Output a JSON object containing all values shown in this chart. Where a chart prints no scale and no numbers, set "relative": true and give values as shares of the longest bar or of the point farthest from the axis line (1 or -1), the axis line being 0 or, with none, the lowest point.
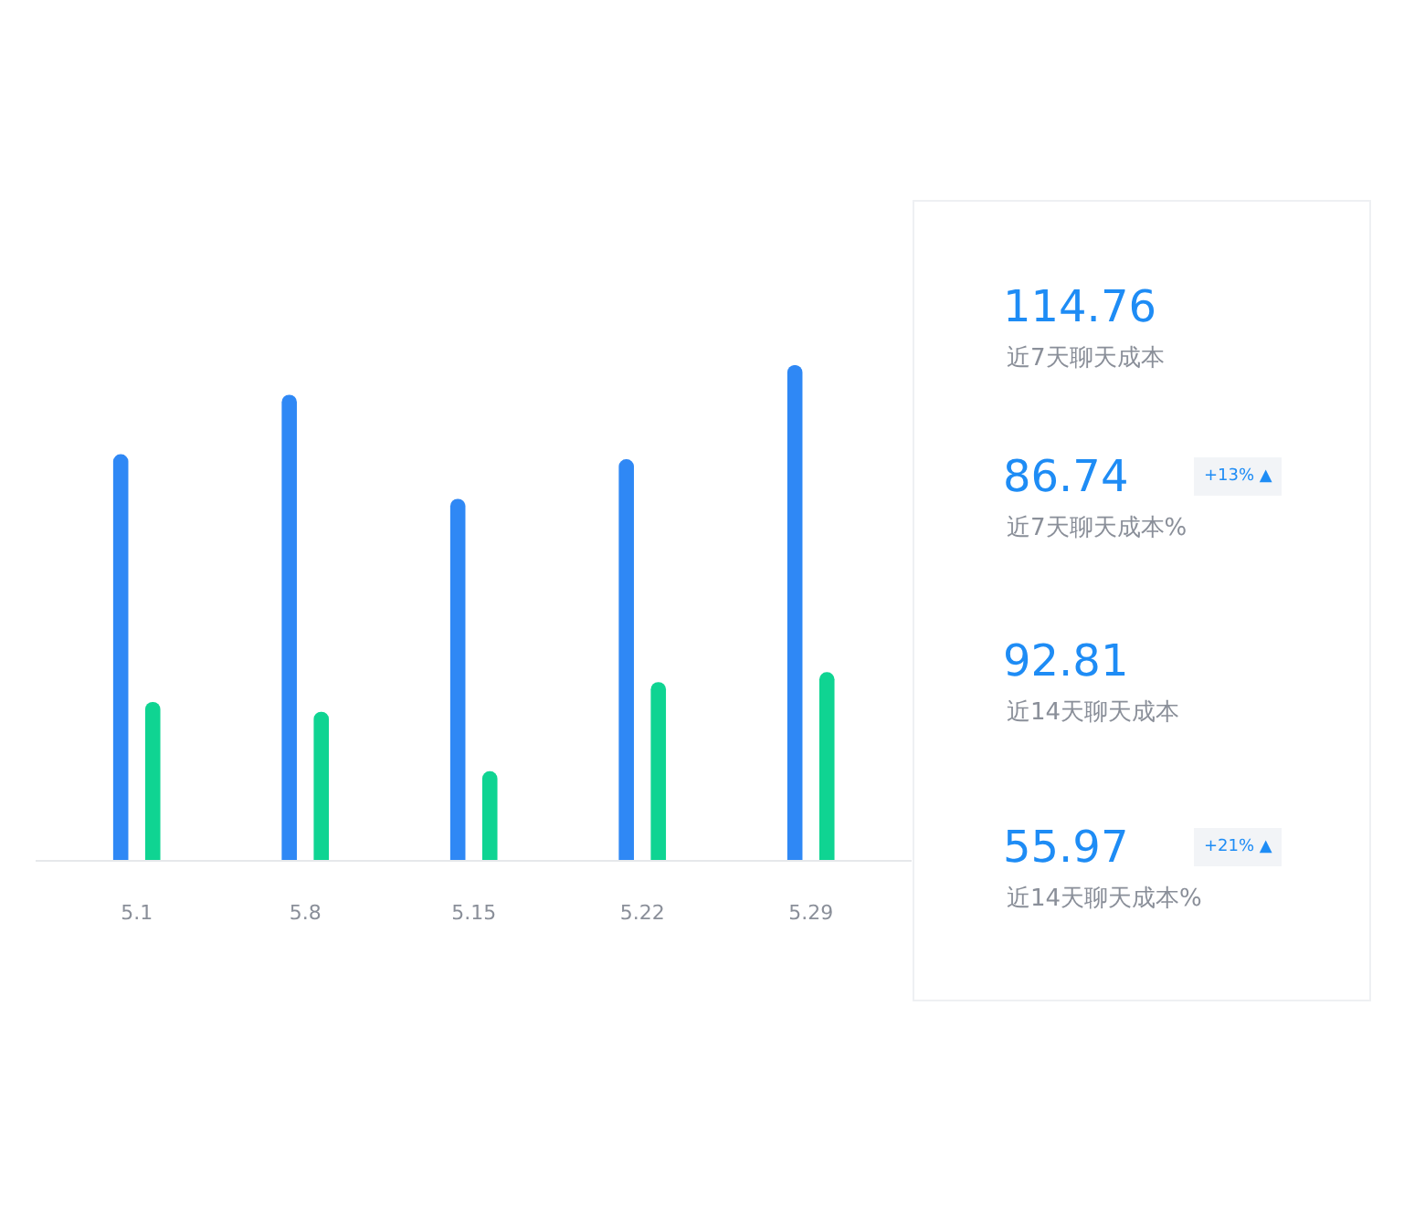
{
  "chart_data": [
    {
      "type": "bar",
      "relative": true,
      "categories": [
        "5.1",
        "5.8",
        "5.15",
        "5.22",
        "5.29"
      ],
      "legend": false,
      "series": [
        {
          "color": "#2f88f5",
          "values": [
            0.82,
            0.94,
            0.73,
            0.81,
            1.0
          ]
        },
        {
          "color": "#0fd492",
          "values": [
            0.32,
            0.3,
            0.18,
            0.36,
            0.38
          ]
        }
      ]
    },
    {
      "type": "other",
      "title": "114.76",
      "subtitle": "近7天聊天成本"
    },
    {
      "type": "other",
      "title": "86.74",
      "subtitle": "近7天聊天成本%",
      "annotations": [
        "+13% ▲"
      ]
    },
    {
      "type": "other",
      "title": "92.81",
      "subtitle": "近14天聊天成本"
    },
    {
      "type": "other",
      "title": "55.97",
      "subtitle": "近14天聊天成本%",
      "annotations": [
        "+21% ▲"
      ]
    }
  ]
}
